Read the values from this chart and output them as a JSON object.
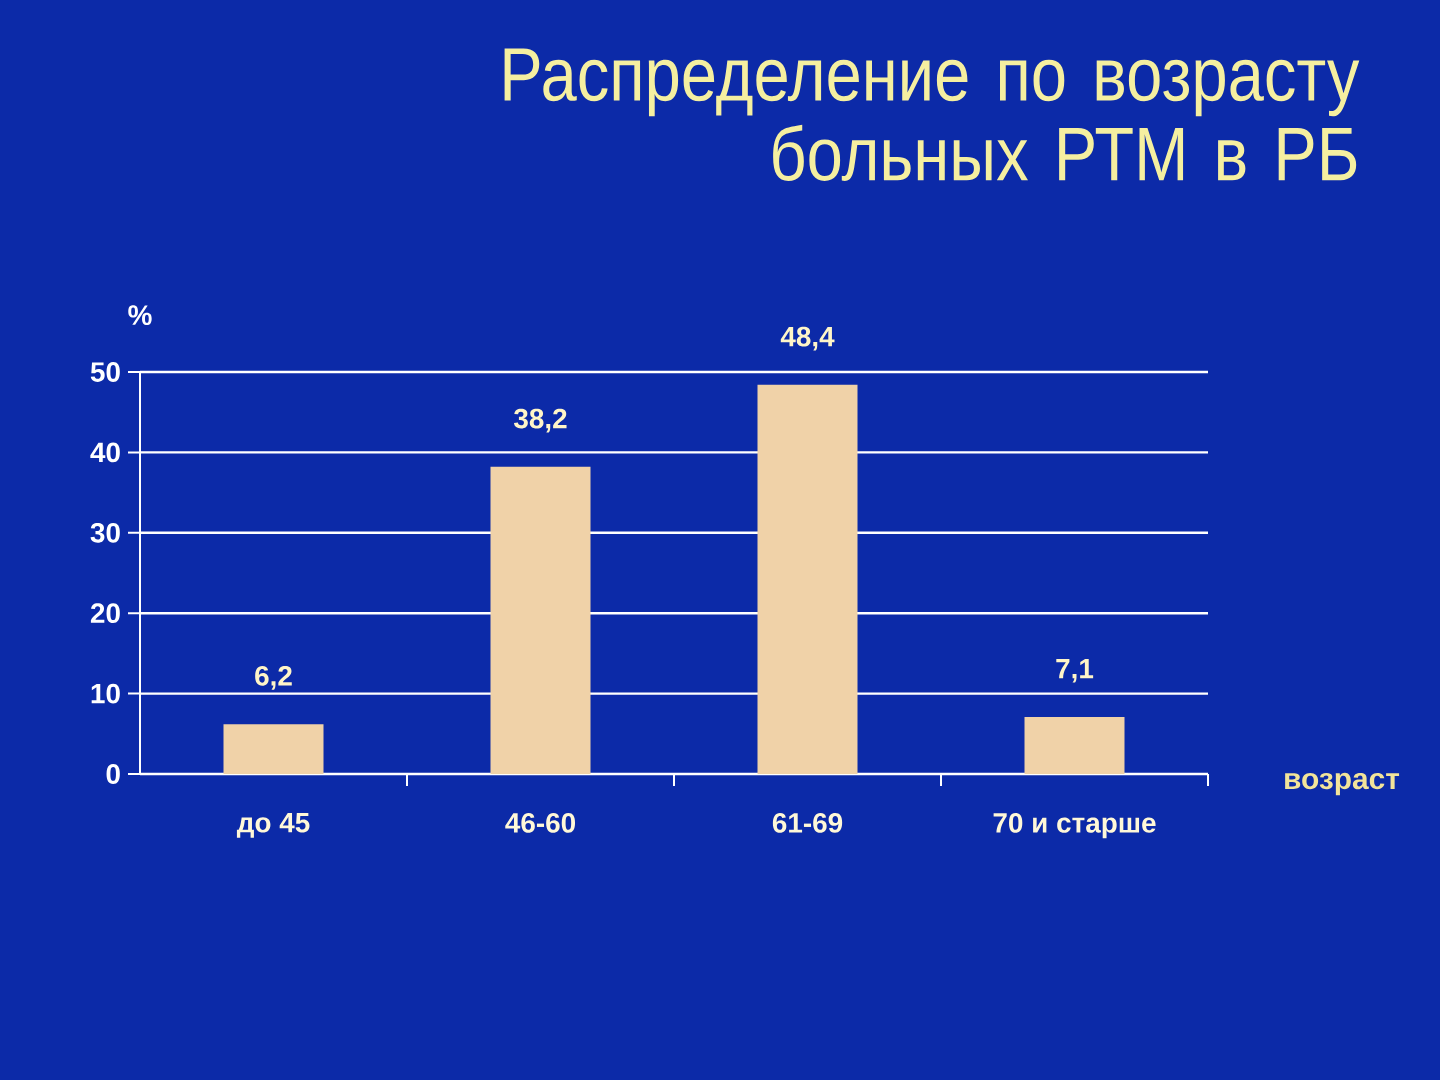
{
  "chart_data": {
    "type": "bar",
    "title": "Распределение по возрасту больных РТМ в РБ",
    "ylabel": "%",
    "xlabel": "возраст",
    "categories": [
      "до 45",
      "46-60",
      "61-69",
      "70 и старше"
    ],
    "values": [
      6.2,
      38.2,
      48.4,
      7.1
    ],
    "value_labels": [
      "6,2",
      "38,2",
      "48,4",
      "7,1"
    ],
    "color": "#f0d2a8",
    "ylim": [
      0,
      50
    ],
    "yticks": [
      0,
      10,
      20,
      30,
      40,
      50
    ],
    "grid": "y"
  }
}
